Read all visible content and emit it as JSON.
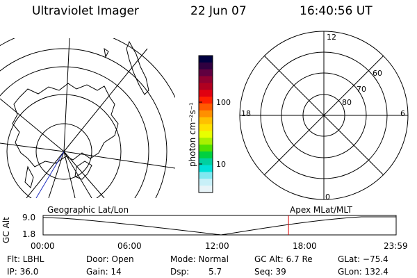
{
  "header": {
    "instrument": "Ultraviolet Imager",
    "date": "22 Jun 07",
    "time": "16:40:56 UT"
  },
  "colorbar": {
    "units": "photon cm⁻²s⁻¹",
    "tick_100": "100",
    "tick_10": "10",
    "colors": [
      "#000040",
      "#300040",
      "#600040",
      "#900030",
      "#b00020",
      "#e00010",
      "#ff2000",
      "#ff5a00",
      "#ff9000",
      "#ffc000",
      "#ffe000",
      "#e8ff00",
      "#a8f000",
      "#50e000",
      "#00d040",
      "#00d0a0",
      "#00e0d8",
      "#80e8f0",
      "#c8f0f8",
      "#e8f4f8"
    ]
  },
  "polar": {
    "label_12": "12",
    "label_6": "6",
    "label_18": "18",
    "label_0": "0",
    "label_60": "60",
    "label_70": "70",
    "label_80": "80"
  },
  "timeline": {
    "y_axis_label": "GC Alt",
    "y_max": "9.0",
    "y_min": "1.8",
    "geo_label": "Geographic Lat/Lon",
    "apex_label": "Apex  MLat/MLT",
    "ticks": [
      "00:00",
      "06:00",
      "12:00",
      "18:00",
      "23:59"
    ],
    "current_time_fraction": 0.6951
  },
  "status": {
    "flt": "Flt: LBHL",
    "ip": "IP: 36.0",
    "door": "Door: Open",
    "gain": "Gain: 14",
    "mode": "Mode: Normal",
    "dsp_label": "Dsp:",
    "dsp_value": "5.7",
    "gc_alt": "GC Alt: 6.7 Re",
    "seq": "Seq: 39",
    "glat": "GLat: −75.4",
    "glon": "GLon: 132.4"
  }
}
